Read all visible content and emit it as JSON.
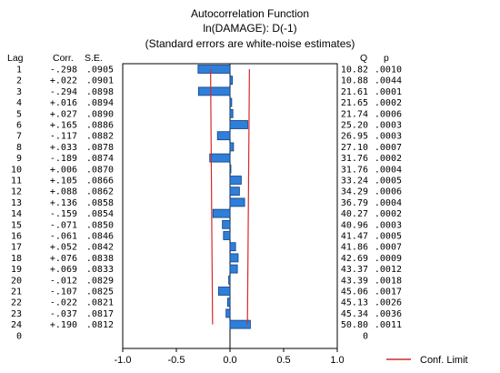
{
  "chart_data": {
    "type": "bar",
    "title": "Autocorrelation Function",
    "subtitle": "ln(DAMAGE): D(-1)",
    "note": "(Standard errors are white-noise estimates)",
    "columns": {
      "lag": "Lag",
      "corr": "Corr.",
      "se": "S.E.",
      "q": "Q",
      "p": "p"
    },
    "rows": [
      {
        "lag": "1",
        "corr": "-.298",
        "se": ".0905",
        "q": "10.82",
        "p": ".0010"
      },
      {
        "lag": "2",
        "corr": "+.022",
        "se": ".0901",
        "q": "10.88",
        "p": ".0044"
      },
      {
        "lag": "3",
        "corr": "-.294",
        "se": ".0898",
        "q": "21.61",
        "p": ".0001"
      },
      {
        "lag": "4",
        "corr": "+.016",
        "se": ".0894",
        "q": "21.65",
        "p": ".0002"
      },
      {
        "lag": "5",
        "corr": "+.027",
        "se": ".0890",
        "q": "21.74",
        "p": ".0006"
      },
      {
        "lag": "6",
        "corr": "+.165",
        "se": ".0886",
        "q": "25.20",
        "p": ".0003"
      },
      {
        "lag": "7",
        "corr": "-.117",
        "se": ".0882",
        "q": "26.95",
        "p": ".0003"
      },
      {
        "lag": "8",
        "corr": "+.033",
        "se": ".0878",
        "q": "27.10",
        "p": ".0007"
      },
      {
        "lag": "9",
        "corr": "-.189",
        "se": ".0874",
        "q": "31.76",
        "p": ".0002"
      },
      {
        "lag": "10",
        "corr": "+.006",
        "se": ".0870",
        "q": "31.76",
        "p": ".0004"
      },
      {
        "lag": "11",
        "corr": "+.105",
        "se": ".0866",
        "q": "33.24",
        "p": ".0005"
      },
      {
        "lag": "12",
        "corr": "+.088",
        "se": ".0862",
        "q": "34.29",
        "p": ".0006"
      },
      {
        "lag": "13",
        "corr": "+.136",
        "se": ".0858",
        "q": "36.79",
        "p": ".0004"
      },
      {
        "lag": "14",
        "corr": "-.159",
        "se": ".0854",
        "q": "40.27",
        "p": ".0002"
      },
      {
        "lag": "15",
        "corr": "-.071",
        "se": ".0850",
        "q": "40.96",
        "p": ".0003"
      },
      {
        "lag": "16",
        "corr": "-.061",
        "se": ".0846",
        "q": "41.47",
        "p": ".0005"
      },
      {
        "lag": "17",
        "corr": "+.052",
        "se": ".0842",
        "q": "41.86",
        "p": ".0007"
      },
      {
        "lag": "18",
        "corr": "+.076",
        "se": ".0838",
        "q": "42.69",
        "p": ".0009"
      },
      {
        "lag": "19",
        "corr": "+.069",
        "se": ".0833",
        "q": "43.37",
        "p": ".0012"
      },
      {
        "lag": "20",
        "corr": "-.012",
        "se": ".0829",
        "q": "43.39",
        "p": ".0018"
      },
      {
        "lag": "21",
        "corr": "-.107",
        "se": ".0825",
        "q": "45.06",
        "p": ".0017"
      },
      {
        "lag": "22",
        "corr": "-.022",
        "se": ".0821",
        "q": "45.13",
        "p": ".0026"
      },
      {
        "lag": "23",
        "corr": "-.037",
        "se": ".0817",
        "q": "45.34",
        "p": ".0036"
      },
      {
        "lag": "24",
        "corr": "+.190",
        "se": ".0812",
        "q": "50.80",
        "p": ".0011"
      }
    ],
    "trailing_zero": "0",
    "x_ticks": [
      "-1.0",
      "-0.5",
      "0.0",
      "0.5",
      "1.0"
    ],
    "x_tick_values": [
      -1.0,
      -0.5,
      0.0,
      0.5,
      1.0
    ],
    "xlim": [
      -1.0,
      1.0
    ],
    "legend": {
      "label": "Conf. Limit",
      "placement": "bottom-right"
    },
    "colors": {
      "bar_fill": "#2f7fd8",
      "bar_stroke": "#0d3f86",
      "conf_limit": "#d42a2a",
      "axis": "#000000"
    },
    "grid": false
  }
}
